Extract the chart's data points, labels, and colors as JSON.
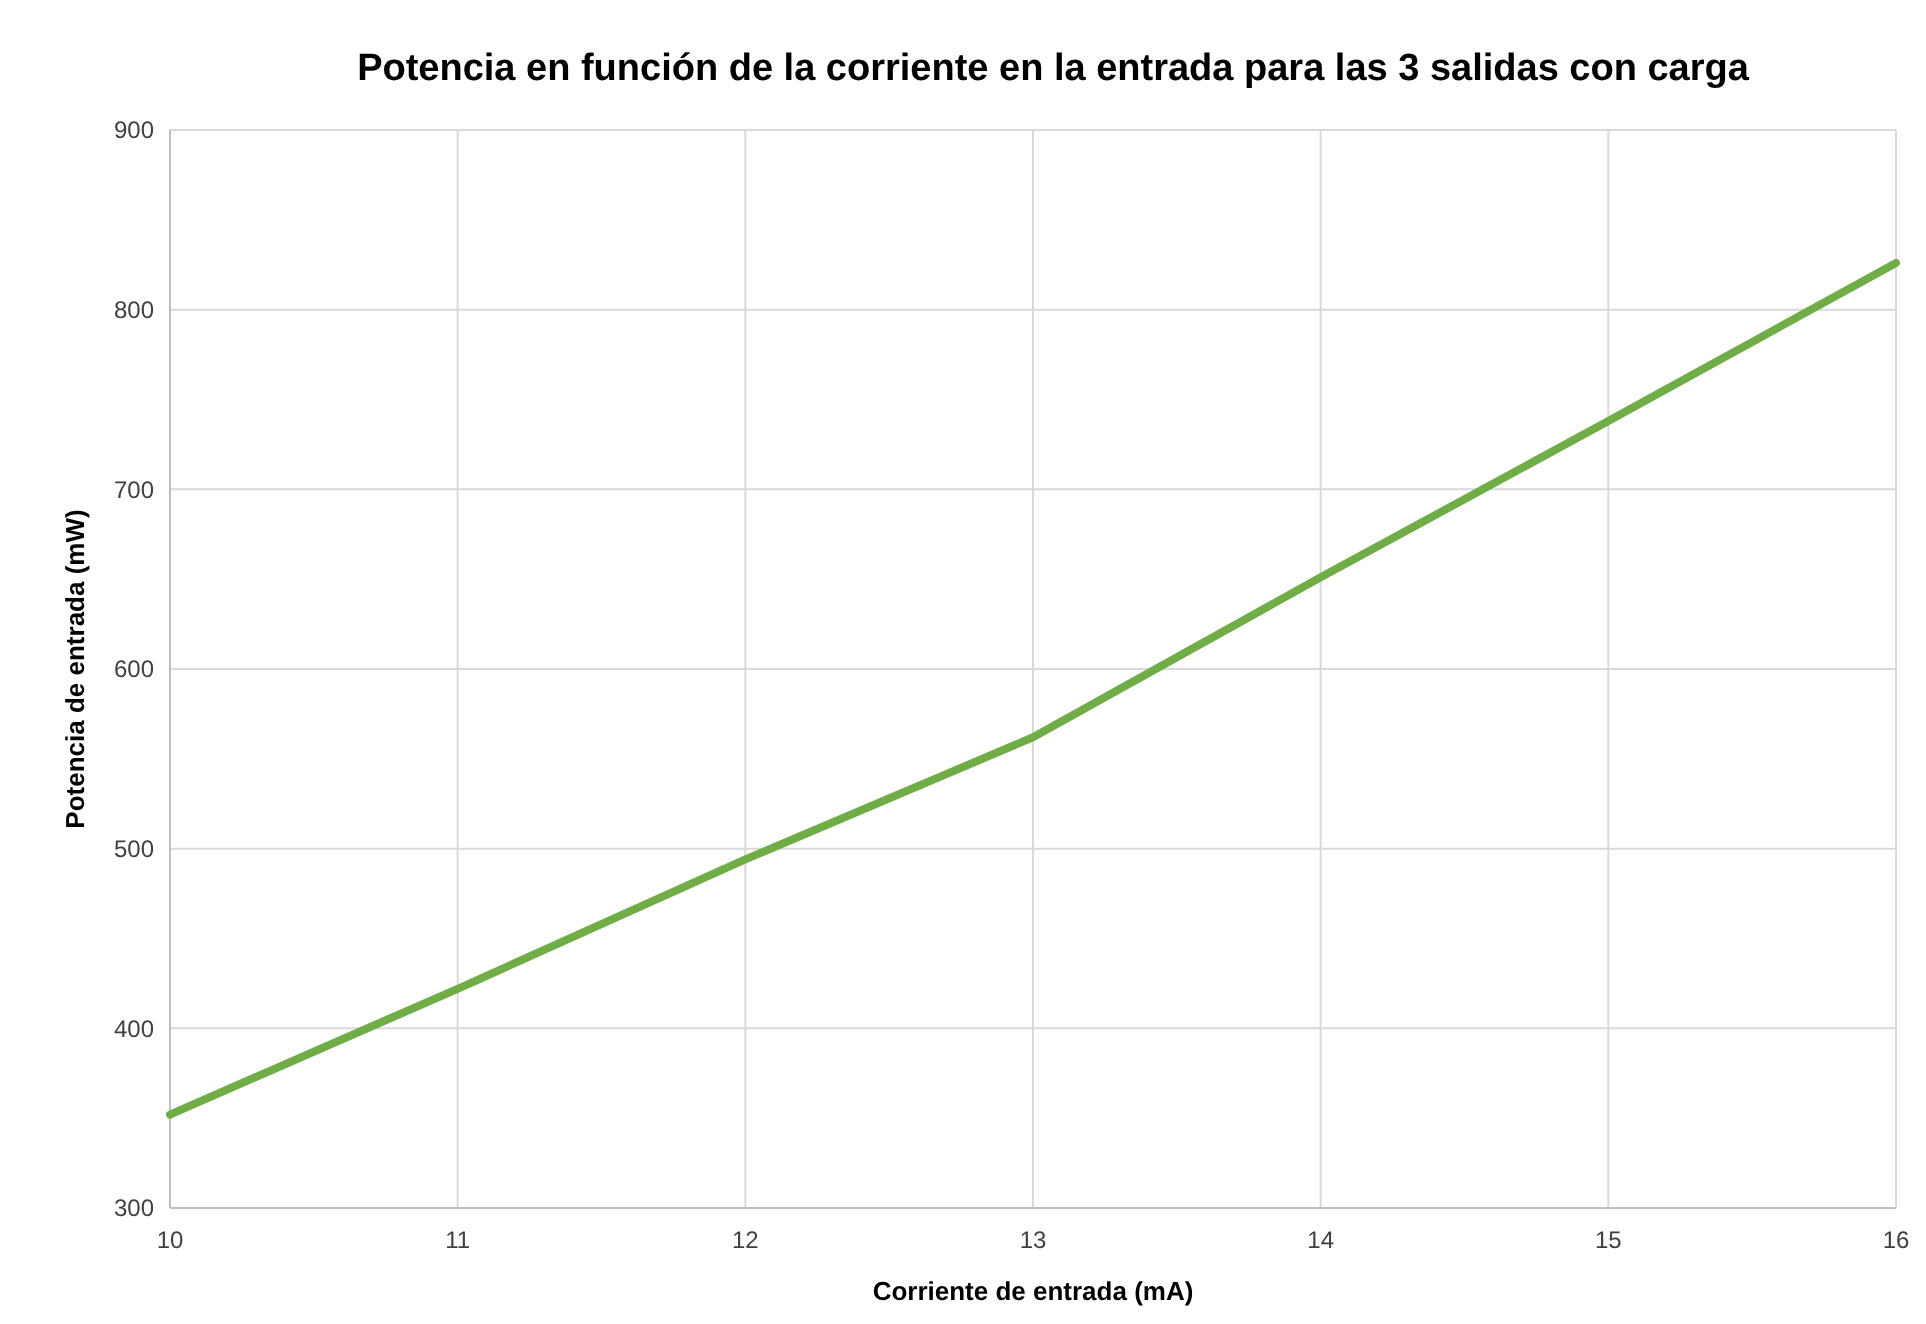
{
  "chart_data": {
    "type": "line",
    "title": "Potencia en función de la corriente en la entrada para las 3 salidas con carga",
    "xlabel": "Corriente de entrada (mA)",
    "ylabel": "Potencia de entrada (mW)",
    "x": [
      10,
      11,
      12,
      13,
      14,
      15,
      16
    ],
    "series": [
      {
        "color": "#70ad47",
        "values": [
          352,
          422,
          494,
          562,
          651,
          738,
          826
        ]
      }
    ],
    "xlim": [
      10,
      16
    ],
    "xticks": [
      10,
      11,
      12,
      13,
      14,
      15,
      16
    ],
    "ylim": [
      300,
      900
    ],
    "yticks": [
      300,
      400,
      500,
      600,
      700,
      800,
      900
    ],
    "grid": true,
    "marker": "none",
    "line_style": "solid"
  }
}
